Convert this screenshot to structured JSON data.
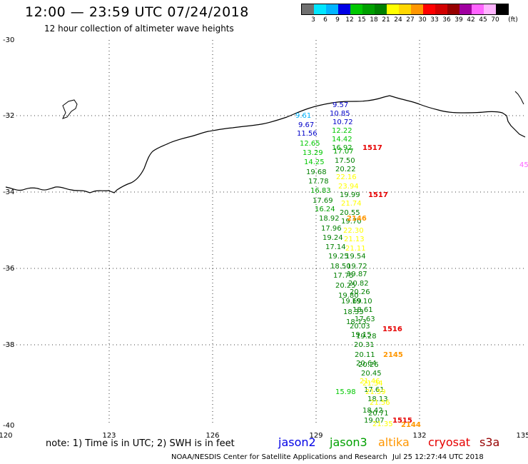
{
  "header": {
    "title": "12:00 — 23:59 UTC 07/24/2018",
    "subtitle": "12 hour collection of altimeter wave heights"
  },
  "scale": {
    "colors": [
      "#707070",
      "#00e6ff",
      "#00b4ff",
      "#0000e6",
      "#00c800",
      "#00a000",
      "#008000",
      "#ffff00",
      "#ffd700",
      "#ff9600",
      "#ff0000",
      "#d20000",
      "#960000",
      "#a000a0",
      "#ff64ff",
      "#ffb4ff",
      "#000000"
    ],
    "labels": [
      "3",
      "6",
      "9",
      "12",
      "15",
      "18",
      "21",
      "24",
      "27",
      "30",
      "33",
      "36",
      "39",
      "42",
      "45",
      "70",
      "(ft)"
    ]
  },
  "map": {
    "lat_labels": [
      "-30",
      "-32",
      "-34",
      "-36",
      "-38",
      "-40"
    ],
    "lon_labels": [
      "120",
      "123",
      "126",
      "129",
      "132",
      "135"
    ],
    "readings": [
      {
        "text": "9.57",
        "color": "#0000c8"
      },
      {
        "text": "10.85",
        "color": "#0000c8"
      },
      {
        "text": "10.72",
        "color": "#0000c8"
      },
      {
        "text": "9.61",
        "color": "#00b4ff"
      },
      {
        "text": "9.67",
        "color": "#0000c8"
      },
      {
        "text": "11.56",
        "color": "#0000c8"
      },
      {
        "text": "12.22",
        "color": "#00c800"
      },
      {
        "text": "14.42",
        "color": "#00c800"
      },
      {
        "text": "12.65",
        "color": "#00c800"
      },
      {
        "text": "16.92",
        "color": "#00a000"
      },
      {
        "text": "13.29",
        "color": "#00c800"
      },
      {
        "text": "17.07",
        "color": "#00a000"
      },
      {
        "text": "14.25",
        "color": "#00c800"
      },
      {
        "text": "17.50",
        "color": "#008000"
      },
      {
        "text": "20.22",
        "color": "#008000"
      },
      {
        "text": "19.68",
        "color": "#008000"
      },
      {
        "text": "22.16",
        "color": "#ffff00"
      },
      {
        "text": "17.78",
        "color": "#008000"
      },
      {
        "text": "23.94",
        "color": "#ffff00"
      },
      {
        "text": "16.83",
        "color": "#00a000"
      },
      {
        "text": "19.99",
        "color": "#008000"
      },
      {
        "text": "17.69",
        "color": "#008000"
      },
      {
        "text": "21.74",
        "color": "#ffff00"
      },
      {
        "text": "16.24",
        "color": "#00a000"
      },
      {
        "text": "20.55",
        "color": "#008000"
      },
      {
        "text": "18.92",
        "color": "#008000"
      },
      {
        "text": "19.70",
        "color": "#008000"
      },
      {
        "text": "17.96",
        "color": "#008000"
      },
      {
        "text": "22.30",
        "color": "#ffff00"
      },
      {
        "text": "19.24",
        "color": "#008000"
      },
      {
        "text": "21.13",
        "color": "#ffff00"
      },
      {
        "text": "17.14",
        "color": "#008000"
      },
      {
        "text": "21.11",
        "color": "#ffff00"
      },
      {
        "text": "19.25",
        "color": "#008000"
      },
      {
        "text": "19.54",
        "color": "#008000"
      },
      {
        "text": "18.50",
        "color": "#008000"
      },
      {
        "text": "19.72",
        "color": "#008000"
      },
      {
        "text": "17.75",
        "color": "#008000"
      },
      {
        "text": "19.87",
        "color": "#008000"
      },
      {
        "text": "20.25",
        "color": "#008000"
      },
      {
        "text": "20.82",
        "color": "#008000"
      },
      {
        "text": "19.80",
        "color": "#008000"
      },
      {
        "text": "20.26",
        "color": "#008000"
      },
      {
        "text": "19.69",
        "color": "#008000"
      },
      {
        "text": "19.10",
        "color": "#008000"
      },
      {
        "text": "18.33",
        "color": "#008000"
      },
      {
        "text": "18.61",
        "color": "#008000"
      },
      {
        "text": "18.13",
        "color": "#008000"
      },
      {
        "text": "17.63",
        "color": "#008000"
      },
      {
        "text": "20.03",
        "color": "#008000"
      },
      {
        "text": "19.15",
        "color": "#008000"
      },
      {
        "text": "19.28",
        "color": "#008000"
      },
      {
        "text": "20.31",
        "color": "#008000"
      },
      {
        "text": "20.11",
        "color": "#008000"
      },
      {
        "text": "20.64",
        "color": "#008000"
      },
      {
        "text": "20.26",
        "color": "#008000"
      },
      {
        "text": "20.45",
        "color": "#008000"
      },
      {
        "text": "21.46",
        "color": "#ffff00"
      },
      {
        "text": "21.34",
        "color": "#ffff00"
      },
      {
        "text": "17.61",
        "color": "#008000"
      },
      {
        "text": "21.59",
        "color": "#ffff00"
      },
      {
        "text": "18.13",
        "color": "#008000"
      },
      {
        "text": "21.56",
        "color": "#ffff00"
      },
      {
        "text": "18.42",
        "color": "#008000"
      },
      {
        "text": "20.71",
        "color": "#008000"
      },
      {
        "text": "19.07",
        "color": "#008000"
      },
      {
        "text": "21.35",
        "color": "#ffff00"
      },
      {
        "text": "15.98",
        "color": "#00c800"
      }
    ],
    "edge_value": "45",
    "s3a_labels": [
      {
        "text": "1517",
        "color": "#e60000"
      },
      {
        "text": "1517",
        "color": "#e60000"
      },
      {
        "text": "1516",
        "color": "#e60000"
      },
      {
        "text": "1515",
        "color": "#e60000"
      }
    ],
    "altika_labels": [
      {
        "text": "2146",
        "color": "#ff9600"
      },
      {
        "text": "2145",
        "color": "#ff9600"
      },
      {
        "text": "2144",
        "color": "#ff9600"
      }
    ]
  },
  "legend": {
    "note": "note: 1) Time is in UTC; 2) SWH is in feet",
    "satellites": [
      {
        "name": "jason2",
        "color": "#0000e6"
      },
      {
        "name": "jason3",
        "color": "#00a000"
      },
      {
        "name": "altika",
        "color": "#ff9600"
      },
      {
        "name": "cryosat",
        "color": "#e60000"
      },
      {
        "name": "s3a",
        "color": "#960000"
      }
    ]
  },
  "footer": {
    "credit": "NOAA/NESDIS Center for Satellite Applications and Research",
    "timestamp": "Jul 25 12:27:44 UTC 2018"
  }
}
